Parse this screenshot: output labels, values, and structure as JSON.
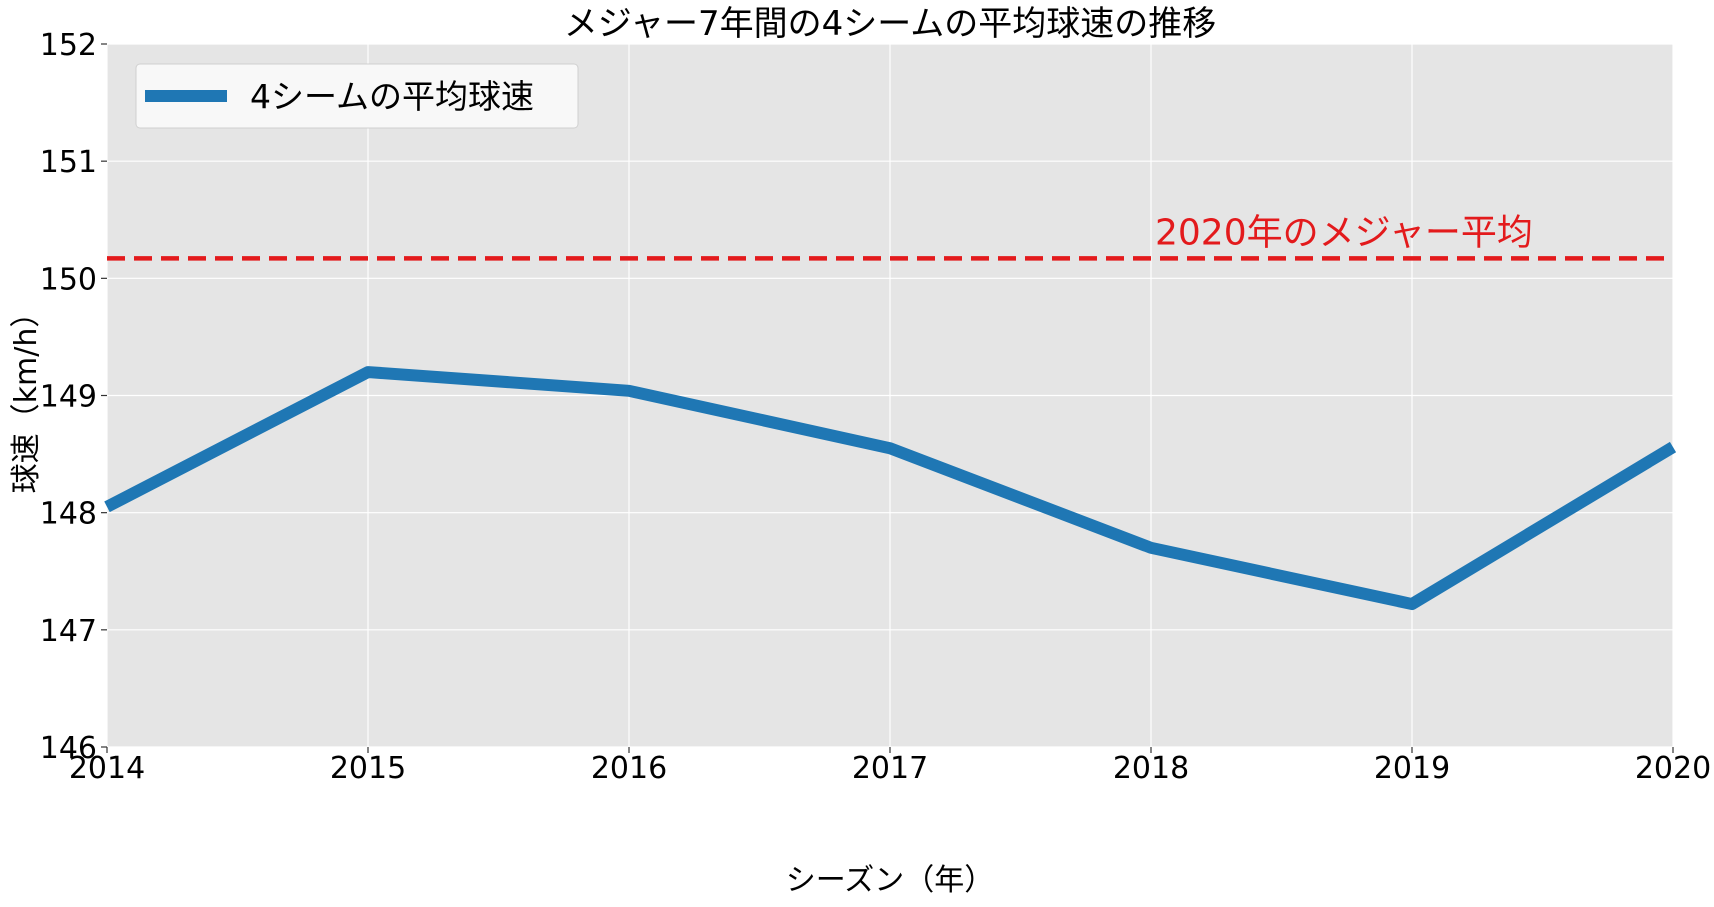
{
  "chart_data": {
    "type": "line",
    "title": "メジャー7年間の4シームの平均球速の推移",
    "xlabel": "シーズン（年）",
    "ylabel": "球速（km/h）",
    "x": [
      2014,
      2015,
      2016,
      2017,
      2018,
      2019,
      2020
    ],
    "xlim": [
      2014,
      2020
    ],
    "ylim": [
      146,
      152
    ],
    "yticks": [
      146,
      147,
      148,
      149,
      150,
      151,
      152
    ],
    "grid": true,
    "legend_position": "top-left",
    "series": [
      {
        "name": "4シームの平均球速",
        "color": "#1f77b4",
        "values": [
          148.05,
          149.2,
          149.04,
          148.55,
          147.7,
          147.22,
          148.56
        ]
      }
    ],
    "reference_line": {
      "y": 150.17,
      "color": "#e31a1c",
      "style": "dashed",
      "label": "2020年のメジャー平均"
    }
  }
}
